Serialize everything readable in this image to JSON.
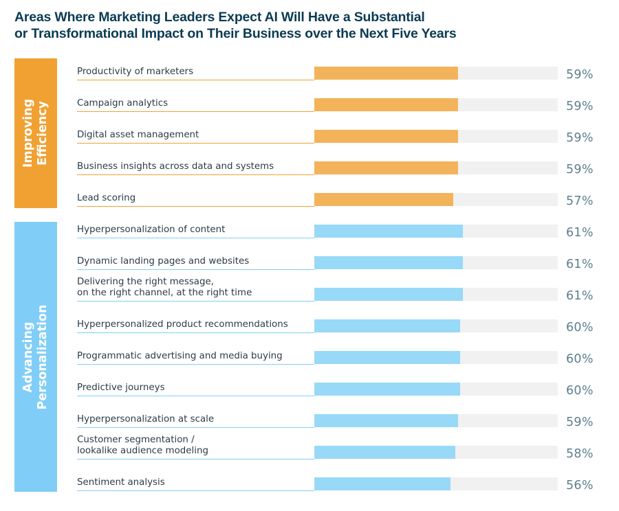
{
  "chart_data": {
    "type": "bar",
    "orientation": "horizontal",
    "title": "Areas Where Marketing Leaders Expect AI Will Have a Substantial or Transformational Impact on Their Business over the Next Five Years",
    "title_lines": [
      "Areas Where Marketing Leaders Expect AI Will Have a Substantial",
      "or Transformational Impact on Their Business over the Next Five Years"
    ],
    "xlabel": "",
    "ylabel": "",
    "xlim": [
      0,
      100
    ],
    "unit": "%",
    "grid": false,
    "groups": [
      {
        "name": "Improving Efficiency",
        "label_lines": [
          "Improving",
          "Efficiency"
        ],
        "band_color": "#F0A132",
        "bar_color": "#F3B35B",
        "items": [
          {
            "label_lines": [
              "Productivity of marketers"
            ],
            "value": 59
          },
          {
            "label_lines": [
              "Campaign analytics"
            ],
            "value": 59
          },
          {
            "label_lines": [
              "Digital asset management"
            ],
            "value": 59
          },
          {
            "label_lines": [
              "Business insights across data and systems"
            ],
            "value": 59
          },
          {
            "label_lines": [
              "Lead scoring"
            ],
            "value": 57
          }
        ]
      },
      {
        "name": "Advancing Personalization",
        "label_lines": [
          "Advancing",
          "Personalization"
        ],
        "band_color": "#80CEF7",
        "bar_color": "#98D9F8",
        "items": [
          {
            "label_lines": [
              "Hyperpersonalization of content"
            ],
            "value": 61
          },
          {
            "label_lines": [
              "Dynamic landing pages and websites"
            ],
            "value": 61
          },
          {
            "label_lines": [
              "Delivering the right message,",
              "on the right channel, at the right time"
            ],
            "value": 61
          },
          {
            "label_lines": [
              "Hyperpersonalized product recommendations"
            ],
            "value": 60
          },
          {
            "label_lines": [
              "Programmatic advertising and media buying"
            ],
            "value": 60
          },
          {
            "label_lines": [
              "Predictive journeys"
            ],
            "value": 60
          },
          {
            "label_lines": [
              "Hyperpersonalization at scale"
            ],
            "value": 59
          },
          {
            "label_lines": [
              "Customer segmentation /",
              "lookalike audience modeling"
            ],
            "value": 58
          },
          {
            "label_lines": [
              "Sentiment analysis"
            ],
            "value": 56
          }
        ]
      }
    ],
    "track_color": "#F1F1F1",
    "value_text_color": "#5D7F8D"
  }
}
